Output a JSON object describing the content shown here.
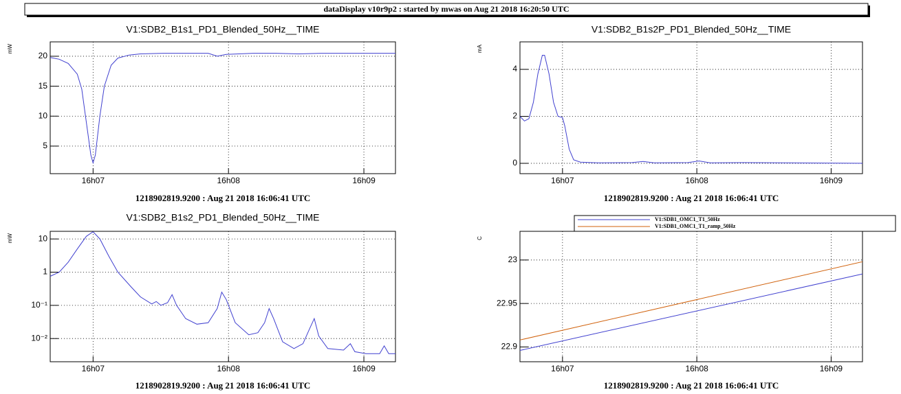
{
  "header": "dataDisplay v10r9p2 : started by mwas on Aug 21 2018 16:20:50 UTC",
  "chart_data": [
    {
      "type": "line",
      "title": "V1:SDB2_B1s1_PD1_Blended_50Hz__TIME",
      "ylabel": "mW",
      "xlabel": "1218902819.9200 : Aug 21 2018 16:06:41 UTC",
      "x": [
        0,
        4,
        8,
        12,
        14,
        16,
        18,
        19,
        20,
        22,
        24,
        27,
        30,
        35,
        40,
        50,
        60,
        70,
        74,
        78,
        90,
        100,
        110,
        120,
        130,
        140,
        153
      ],
      "series": [
        {
          "color": "#3f3fcf",
          "values": [
            19.8,
            19.5,
            18.8,
            17,
            14.5,
            9,
            3.5,
            2.2,
            3.5,
            10,
            15,
            18.5,
            19.7,
            20.2,
            20.4,
            20.5,
            20.5,
            20.5,
            20.0,
            20.3,
            20.5,
            20.5,
            20.4,
            20.5,
            20.5,
            20.5,
            20.5
          ]
        }
      ],
      "xlim": [
        0,
        153
      ],
      "xticks": [
        {
          "value": 19,
          "label": "16h07"
        },
        {
          "value": 79,
          "label": "16h08"
        },
        {
          "value": 139,
          "label": "16h09"
        }
      ],
      "ylim": [
        0.4,
        22.4
      ],
      "yticks": [
        5,
        10,
        15,
        20
      ],
      "log_y": false,
      "grid": true
    },
    {
      "type": "line",
      "title": "V1:SDB2_B1s2P_PD1_Blended_50Hz__TIME",
      "ylabel": "mA",
      "xlabel": "1218902819.9200 : Aug 21 2018 16:06:41 UTC",
      "x": [
        0,
        2,
        4,
        6,
        8,
        10,
        11,
        13,
        15,
        17,
        19,
        20,
        22,
        24,
        27,
        35,
        50,
        55,
        60,
        75,
        80,
        85,
        100,
        120,
        153
      ],
      "series": [
        {
          "color": "#3f3fcf",
          "values": [
            2.0,
            1.8,
            1.9,
            2.6,
            3.8,
            4.6,
            4.6,
            3.8,
            2.6,
            2.0,
            1.95,
            1.6,
            0.6,
            0.15,
            0.05,
            0.02,
            0.03,
            0.08,
            0.02,
            0.03,
            0.1,
            0.02,
            0.03,
            0.02,
            0.0
          ]
        }
      ],
      "xlim": [
        0,
        153
      ],
      "xticks": [
        {
          "value": 19,
          "label": "16h07"
        },
        {
          "value": 79,
          "label": "16h08"
        },
        {
          "value": 139,
          "label": "16h09"
        }
      ],
      "ylim": [
        -0.44,
        5.17
      ],
      "yticks": [
        0,
        2,
        4
      ],
      "log_y": false,
      "grid": true
    },
    {
      "type": "line",
      "title": "V1:SDB2_B1s2_PD1_Blended_50Hz__TIME",
      "ylabel": "mW",
      "xlabel": "1218902819.9200 : Aug 21 2018 16:06:41 UTC",
      "x": [
        0,
        4,
        8,
        12,
        16,
        19,
        22,
        26,
        30,
        36,
        40,
        45,
        47,
        49,
        52,
        54,
        56,
        60,
        65,
        70,
        74,
        76,
        78,
        82,
        88,
        92,
        95,
        97,
        99,
        103,
        108,
        112,
        115,
        117,
        119,
        123,
        130,
        133,
        135,
        140,
        146,
        148,
        150,
        153
      ],
      "series": [
        {
          "color": "#3f3fcf",
          "values": [
            0.75,
            1.0,
            2,
            5,
            12,
            16.5,
            10,
            3,
            1,
            0.35,
            0.18,
            0.11,
            0.13,
            0.1,
            0.12,
            0.21,
            0.1,
            0.04,
            0.027,
            0.03,
            0.08,
            0.25,
            0.15,
            0.03,
            0.013,
            0.015,
            0.03,
            0.08,
            0.04,
            0.008,
            0.005,
            0.007,
            0.02,
            0.04,
            0.012,
            0.005,
            0.0045,
            0.007,
            0.004,
            0.0035,
            0.0035,
            0.006,
            0.0035,
            0.0035
          ]
        }
      ],
      "xlim": [
        0,
        153
      ],
      "xticks": [
        {
          "value": 19,
          "label": "16h07"
        },
        {
          "value": 79,
          "label": "16h08"
        },
        {
          "value": 139,
          "label": "16h09"
        }
      ],
      "ylim": [
        0.002,
        17
      ],
      "yticks": [
        {
          "value": 0.01,
          "label": "10⁻²"
        },
        {
          "value": 0.1,
          "label": "10⁻¹"
        },
        1,
        10
      ],
      "log_y": true,
      "grid": true
    },
    {
      "type": "line",
      "ylabel": "C",
      "xlabel": "1218902819.9200 : Aug 21 2018 16:06:41 UTC",
      "x": [
        0,
        153
      ],
      "series": [
        {
          "name": "V1:SDB1_OMC1_T1_50Hz",
          "color": "#3f3fcf",
          "values": [
            22.896,
            22.984
          ]
        },
        {
          "name": "V1:SDB1_OMC1_T1_ramp_50Hz",
          "color": "#d0600a",
          "values": [
            22.908,
            22.998
          ]
        }
      ],
      "xlim": [
        0,
        153
      ],
      "xticks": [
        {
          "value": 19,
          "label": "16h07"
        },
        {
          "value": 79,
          "label": "16h08"
        },
        {
          "value": 139,
          "label": "16h09"
        }
      ],
      "ylim": [
        22.883,
        23.033
      ],
      "yticks": [
        22.9,
        22.95,
        23
      ],
      "log_y": false,
      "grid": true,
      "legend": "top"
    }
  ]
}
